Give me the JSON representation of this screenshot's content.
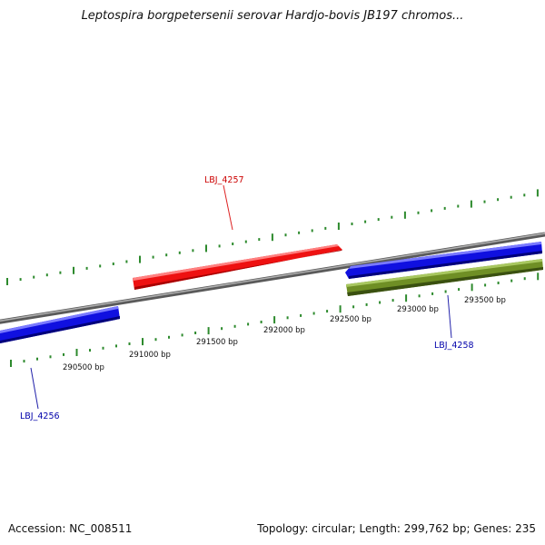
{
  "title": "Leptospira borgpetersenii serovar Hardjo-bovis JB197 chromos...",
  "colors": {
    "forward_gene": "#ee1111",
    "reverse_gene": "#1010e0",
    "other_gene": "#6f8f25",
    "backbone": "#8a8a8a",
    "ticks": "#2d8a2d",
    "forward_label": "#cc0000",
    "reverse_label": "#0000aa"
  },
  "genes": [
    {
      "id": "LBJ_4256",
      "strand": "reverse",
      "label": "LBJ_4256"
    },
    {
      "id": "LBJ_4257",
      "strand": "forward",
      "label": "LBJ_4257"
    },
    {
      "id": "LBJ_4258",
      "strand": "reverse",
      "label": "LBJ_4258"
    },
    {
      "id": "unlabeled-olive",
      "strand": "reverse",
      "label": ""
    }
  ],
  "scale_labels": [
    "290500 bp",
    "291000 bp",
    "291500 bp",
    "292000 bp",
    "292500 bp",
    "293000 bp",
    "293500 bp"
  ],
  "footer": {
    "accession": "Accession: NC_008511",
    "stats": "Topology: circular; Length: 299,762 bp; Genes: 235"
  }
}
